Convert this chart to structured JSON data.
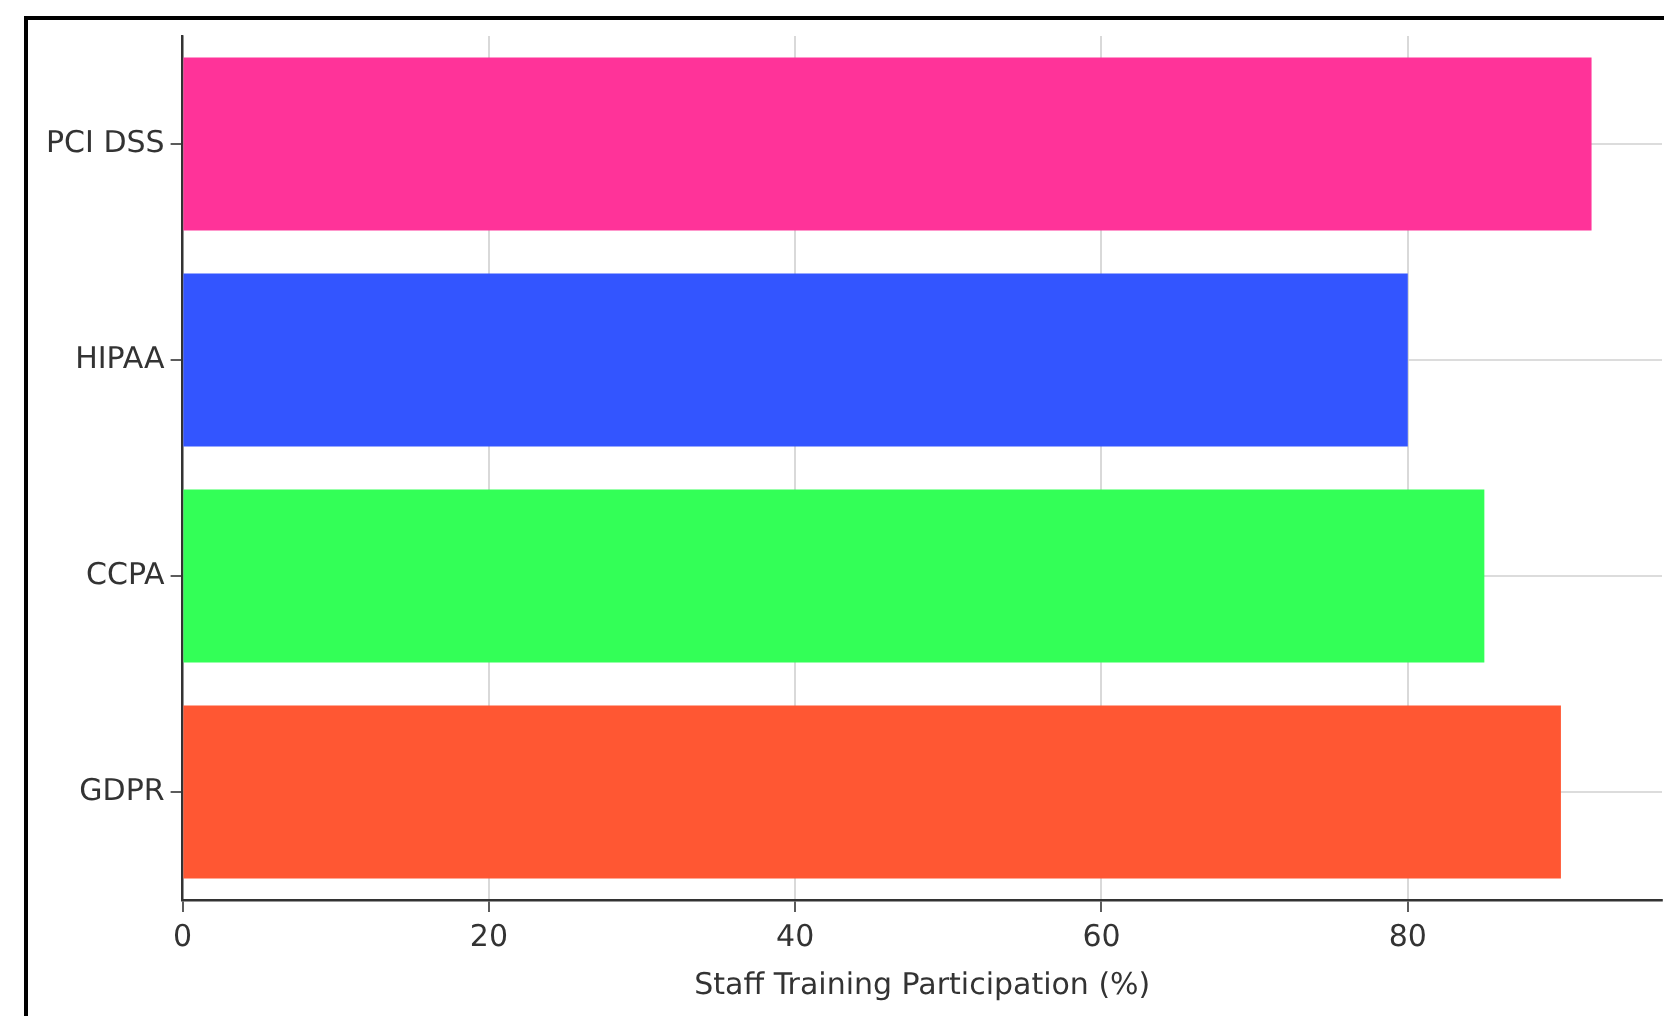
{
  "chart_data": {
    "type": "bar",
    "orientation": "horizontal",
    "xlabel": "Staff Training Participation (%)",
    "categories": [
      "PCI DSS",
      "HIPAA",
      "CCPA",
      "GDPR"
    ],
    "values": [
      92,
      80,
      85,
      90
    ],
    "colors": [
      "#ff3399",
      "#3355ff",
      "#33ff57",
      "#ff5733"
    ],
    "xlim": [
      0,
      96.6
    ],
    "xticks": [
      0,
      20,
      40,
      60,
      80
    ],
    "grid": true,
    "legend": false
  }
}
